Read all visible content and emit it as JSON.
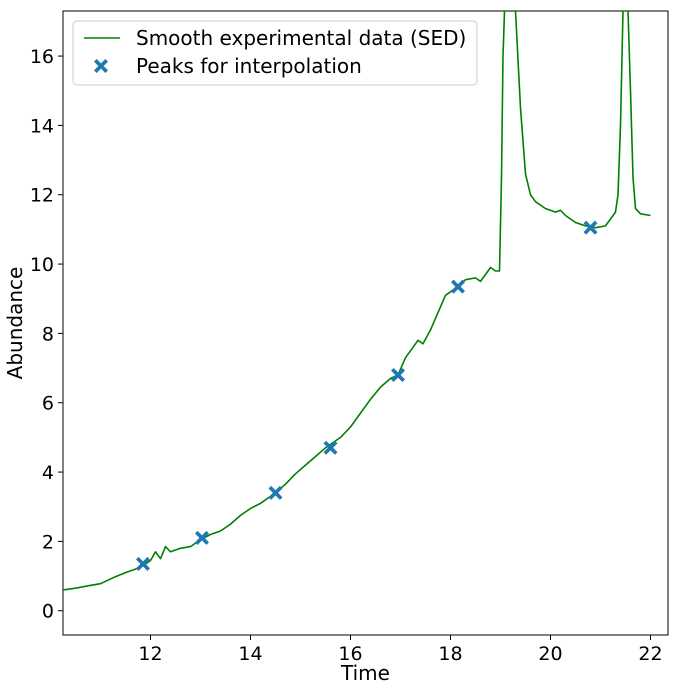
{
  "chart_data": {
    "type": "line",
    "title": "",
    "xlabel": "Time",
    "ylabel": "Abundance",
    "xlim": [
      10.25,
      22.35
    ],
    "ylim": [
      -0.7,
      17.3
    ],
    "xticks": [
      12,
      14,
      16,
      18,
      20,
      22
    ],
    "yticks": [
      0,
      2,
      4,
      6,
      8,
      10,
      12,
      14,
      16
    ],
    "grid": false,
    "legend": {
      "placement": "top-left"
    },
    "colors": {
      "sed": "#008000",
      "peaks": "#1f77b4"
    },
    "series": [
      {
        "name": "Smooth experimental data (SED)",
        "kind": "line",
        "x": [
          10.25,
          10.5,
          10.75,
          11.0,
          11.25,
          11.5,
          11.7,
          11.85,
          12.0,
          12.1,
          12.2,
          12.3,
          12.4,
          12.6,
          12.8,
          13.0,
          13.2,
          13.4,
          13.6,
          13.8,
          14.0,
          14.2,
          14.5,
          14.7,
          14.9,
          15.1,
          15.3,
          15.5,
          15.65,
          15.8,
          16.0,
          16.2,
          16.4,
          16.6,
          16.8,
          16.95,
          17.1,
          17.25,
          17.35,
          17.45,
          17.6,
          17.75,
          17.9,
          18.1,
          18.3,
          18.5,
          18.6,
          18.7,
          18.8,
          18.9,
          18.98,
          19.02,
          19.05,
          19.08,
          19.1,
          19.15,
          19.2,
          19.3,
          19.4,
          19.5,
          19.6,
          19.7,
          19.8,
          19.9,
          20.0,
          20.1,
          20.2,
          20.3,
          20.5,
          20.7,
          20.9,
          21.1,
          21.2,
          21.3,
          21.35,
          21.4,
          21.45,
          21.5,
          21.55,
          21.6,
          21.65,
          21.7,
          21.8,
          22.0
        ],
        "y": [
          0.6,
          0.65,
          0.72,
          0.78,
          0.95,
          1.1,
          1.2,
          1.3,
          1.45,
          1.7,
          1.5,
          1.85,
          1.7,
          1.8,
          1.85,
          2.05,
          2.2,
          2.3,
          2.5,
          2.75,
          2.95,
          3.1,
          3.4,
          3.65,
          3.95,
          4.2,
          4.45,
          4.7,
          4.85,
          5.0,
          5.3,
          5.7,
          6.1,
          6.45,
          6.7,
          6.8,
          7.3,
          7.6,
          7.8,
          7.7,
          8.1,
          8.6,
          9.1,
          9.3,
          9.55,
          9.6,
          9.5,
          9.7,
          9.9,
          9.8,
          9.8,
          12.5,
          16.0,
          17.3,
          17.3,
          17.3,
          17.3,
          17.3,
          14.5,
          12.6,
          12.0,
          11.8,
          11.7,
          11.6,
          11.55,
          11.5,
          11.55,
          11.4,
          11.2,
          11.1,
          11.05,
          11.1,
          11.3,
          11.5,
          12.0,
          14.0,
          17.3,
          17.3,
          17.3,
          15.0,
          12.5,
          11.6,
          11.45,
          11.4
        ]
      },
      {
        "name": "Peaks for interpolation",
        "kind": "scatter",
        "x": [
          11.85,
          13.03,
          14.5,
          15.6,
          16.95,
          18.15,
          20.8
        ],
        "y": [
          1.35,
          2.1,
          3.4,
          4.7,
          6.8,
          9.35,
          11.05
        ]
      }
    ]
  }
}
